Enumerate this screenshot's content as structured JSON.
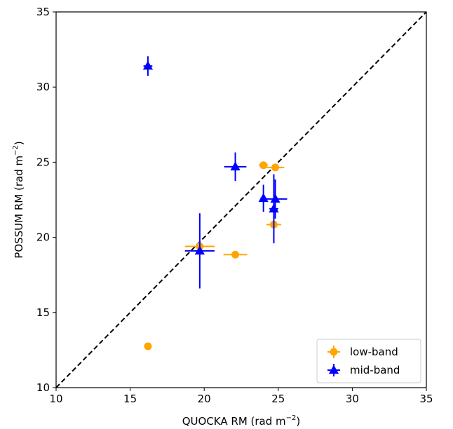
{
  "chart_data": {
    "type": "scatter",
    "xlabel": "QUOCKA RM (rad m",
    "xlabel_sup": "−2",
    "xlabel_end": ")",
    "ylabel": "POSSUM RM (rad m",
    "ylabel_sup": "−2",
    "ylabel_end": ")",
    "xlim": [
      10,
      35
    ],
    "ylim": [
      10,
      35
    ],
    "xticks": [
      "10",
      "15",
      "20",
      "25",
      "30",
      "35"
    ],
    "yticks": [
      "10",
      "15",
      "20",
      "25",
      "30",
      "35"
    ],
    "reference_line": {
      "style": "dashed",
      "from": [
        10,
        10
      ],
      "to": [
        35,
        35
      ],
      "color": "#000000"
    },
    "legend_position": "bottom-right",
    "series": [
      {
        "name": "low-band",
        "marker": "circle",
        "color": "#ffa500",
        "points": [
          {
            "x": 16.2,
            "y": 12.75,
            "xerr": 0.25,
            "yerr": 0.1
          },
          {
            "x": 19.7,
            "y": 19.4,
            "xerr": 1.0,
            "yerr": 0.15
          },
          {
            "x": 22.1,
            "y": 18.85,
            "xerr": 0.8,
            "yerr": 0.1
          },
          {
            "x": 24.0,
            "y": 24.8,
            "xerr": 0.3,
            "yerr": 0.1
          },
          {
            "x": 24.8,
            "y": 24.65,
            "xerr": 0.6,
            "yerr": 0.1
          },
          {
            "x": 24.7,
            "y": 20.85,
            "xerr": 0.5,
            "yerr": 0.1
          }
        ]
      },
      {
        "name": "mid-band",
        "marker": "triangle",
        "color": "#0000ff",
        "points": [
          {
            "x": 16.2,
            "y": 31.4,
            "xerr": 0.3,
            "yerr": 0.65
          },
          {
            "x": 22.1,
            "y": 24.7,
            "xerr": 0.75,
            "yerr": 0.95
          },
          {
            "x": 19.7,
            "y": 19.1,
            "xerr": 1.0,
            "yerr": 2.5
          },
          {
            "x": 24.0,
            "y": 22.6,
            "xerr": 0.2,
            "yerr": 0.9
          },
          {
            "x": 24.7,
            "y": 21.9,
            "xerr": 0.3,
            "yerr": 2.3
          },
          {
            "x": 24.8,
            "y": 22.55,
            "xerr": 0.8,
            "yerr": 1.3
          }
        ]
      }
    ]
  }
}
